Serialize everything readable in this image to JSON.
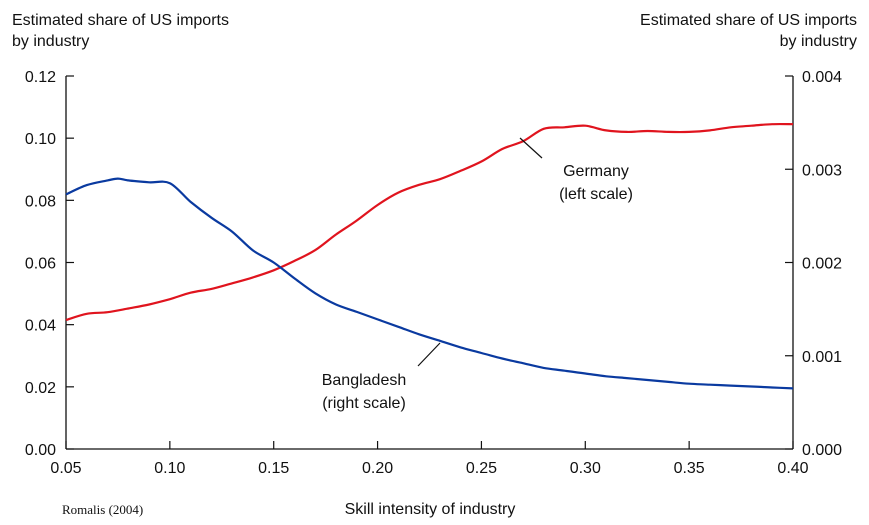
{
  "chart_data": {
    "type": "line",
    "title": "",
    "left_axis_title": [
      "Estimated share of US imports",
      "by industry"
    ],
    "right_axis_title": [
      "Estimated share of US imports",
      "by industry"
    ],
    "xlabel": "Skill intensity of industry",
    "xlim": [
      0.05,
      0.4
    ],
    "x_ticks": [
      "0.05",
      "0.10",
      "0.15",
      "0.20",
      "0.25",
      "0.30",
      "0.35",
      "0.40"
    ],
    "ylim_left": [
      0,
      0.12
    ],
    "y_ticks_left": [
      "0.00",
      "0.02",
      "0.04",
      "0.06",
      "0.08",
      "0.10",
      "0.12"
    ],
    "ylim_right": [
      0,
      0.004
    ],
    "y_ticks_right": [
      "0.000",
      "0.001",
      "0.002",
      "0.003",
      "0.004"
    ],
    "grid": false,
    "source": "Romalis (2004)",
    "series": [
      {
        "name": "Germany",
        "label_lines": [
          "Germany",
          "(left scale)"
        ],
        "axis": "left",
        "color": "#e0141e",
        "x": [
          0.05,
          0.06,
          0.07,
          0.08,
          0.09,
          0.1,
          0.11,
          0.12,
          0.13,
          0.14,
          0.15,
          0.16,
          0.17,
          0.18,
          0.19,
          0.2,
          0.21,
          0.22,
          0.23,
          0.24,
          0.25,
          0.26,
          0.27,
          0.28,
          0.29,
          0.3,
          0.31,
          0.32,
          0.33,
          0.34,
          0.35,
          0.36,
          0.37,
          0.38,
          0.39,
          0.4
        ],
        "y": [
          0.0415,
          0.0435,
          0.044,
          0.0452,
          0.0465,
          0.0482,
          0.0503,
          0.0515,
          0.0533,
          0.0552,
          0.0575,
          0.0605,
          0.064,
          0.069,
          0.0735,
          0.0785,
          0.0825,
          0.085,
          0.0868,
          0.0895,
          0.0925,
          0.0965,
          0.099,
          0.103,
          0.1035,
          0.104,
          0.1025,
          0.102,
          0.1023,
          0.102,
          0.102,
          0.1025,
          0.1035,
          0.104,
          0.1045,
          0.1045
        ]
      },
      {
        "name": "Bangladesh",
        "label_lines": [
          "Bangladesh",
          "(right scale)"
        ],
        "axis": "right",
        "color": "#0a3aa0",
        "x": [
          0.05,
          0.06,
          0.07,
          0.075,
          0.08,
          0.09,
          0.1,
          0.11,
          0.12,
          0.13,
          0.14,
          0.15,
          0.16,
          0.17,
          0.18,
          0.19,
          0.2,
          0.21,
          0.22,
          0.23,
          0.24,
          0.25,
          0.26,
          0.27,
          0.28,
          0.29,
          0.3,
          0.31,
          0.32,
          0.33,
          0.34,
          0.35,
          0.36,
          0.37,
          0.38,
          0.39,
          0.4
        ],
        "y": [
          0.00273,
          0.00283,
          0.00288,
          0.0029,
          0.00288,
          0.00286,
          0.00285,
          0.00265,
          0.00248,
          0.00233,
          0.00213,
          0.002,
          0.00183,
          0.00167,
          0.00155,
          0.00147,
          0.00139,
          0.00131,
          0.00123,
          0.00116,
          0.00109,
          0.00103,
          0.00097,
          0.00092,
          0.00087,
          0.00084,
          0.00081,
          0.00078,
          0.00076,
          0.00074,
          0.00072,
          0.0007,
          0.00069,
          0.00068,
          0.00067,
          0.00066,
          0.00065
        ]
      }
    ]
  }
}
